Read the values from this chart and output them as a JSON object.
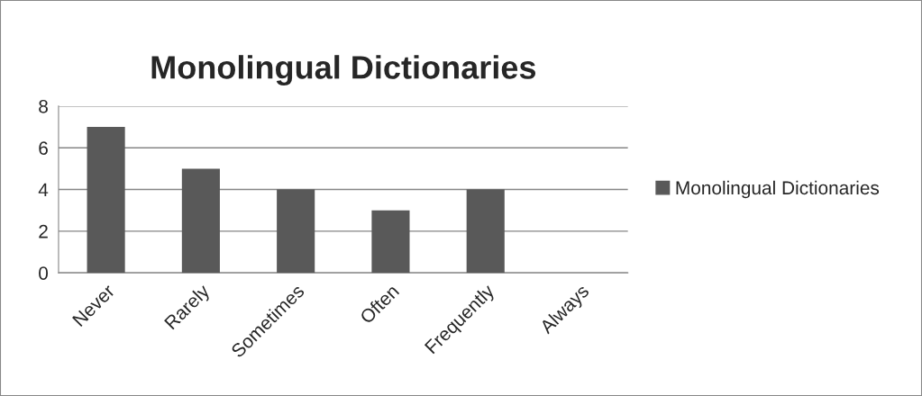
{
  "chart_data": {
    "type": "bar",
    "title": "Monolingual Dictionaries",
    "categories": [
      "Never",
      "Rarely",
      "Sometimes",
      "Often",
      "Frequently",
      "Always"
    ],
    "series": [
      {
        "name": "Monolingual Dictionaries",
        "color": "#595959",
        "values": [
          7,
          5,
          4,
          3,
          4,
          0
        ]
      }
    ],
    "ylim": [
      0,
      8
    ],
    "yticks": [
      0,
      2,
      4,
      6,
      8
    ],
    "grid": "y",
    "legend": "right"
  }
}
